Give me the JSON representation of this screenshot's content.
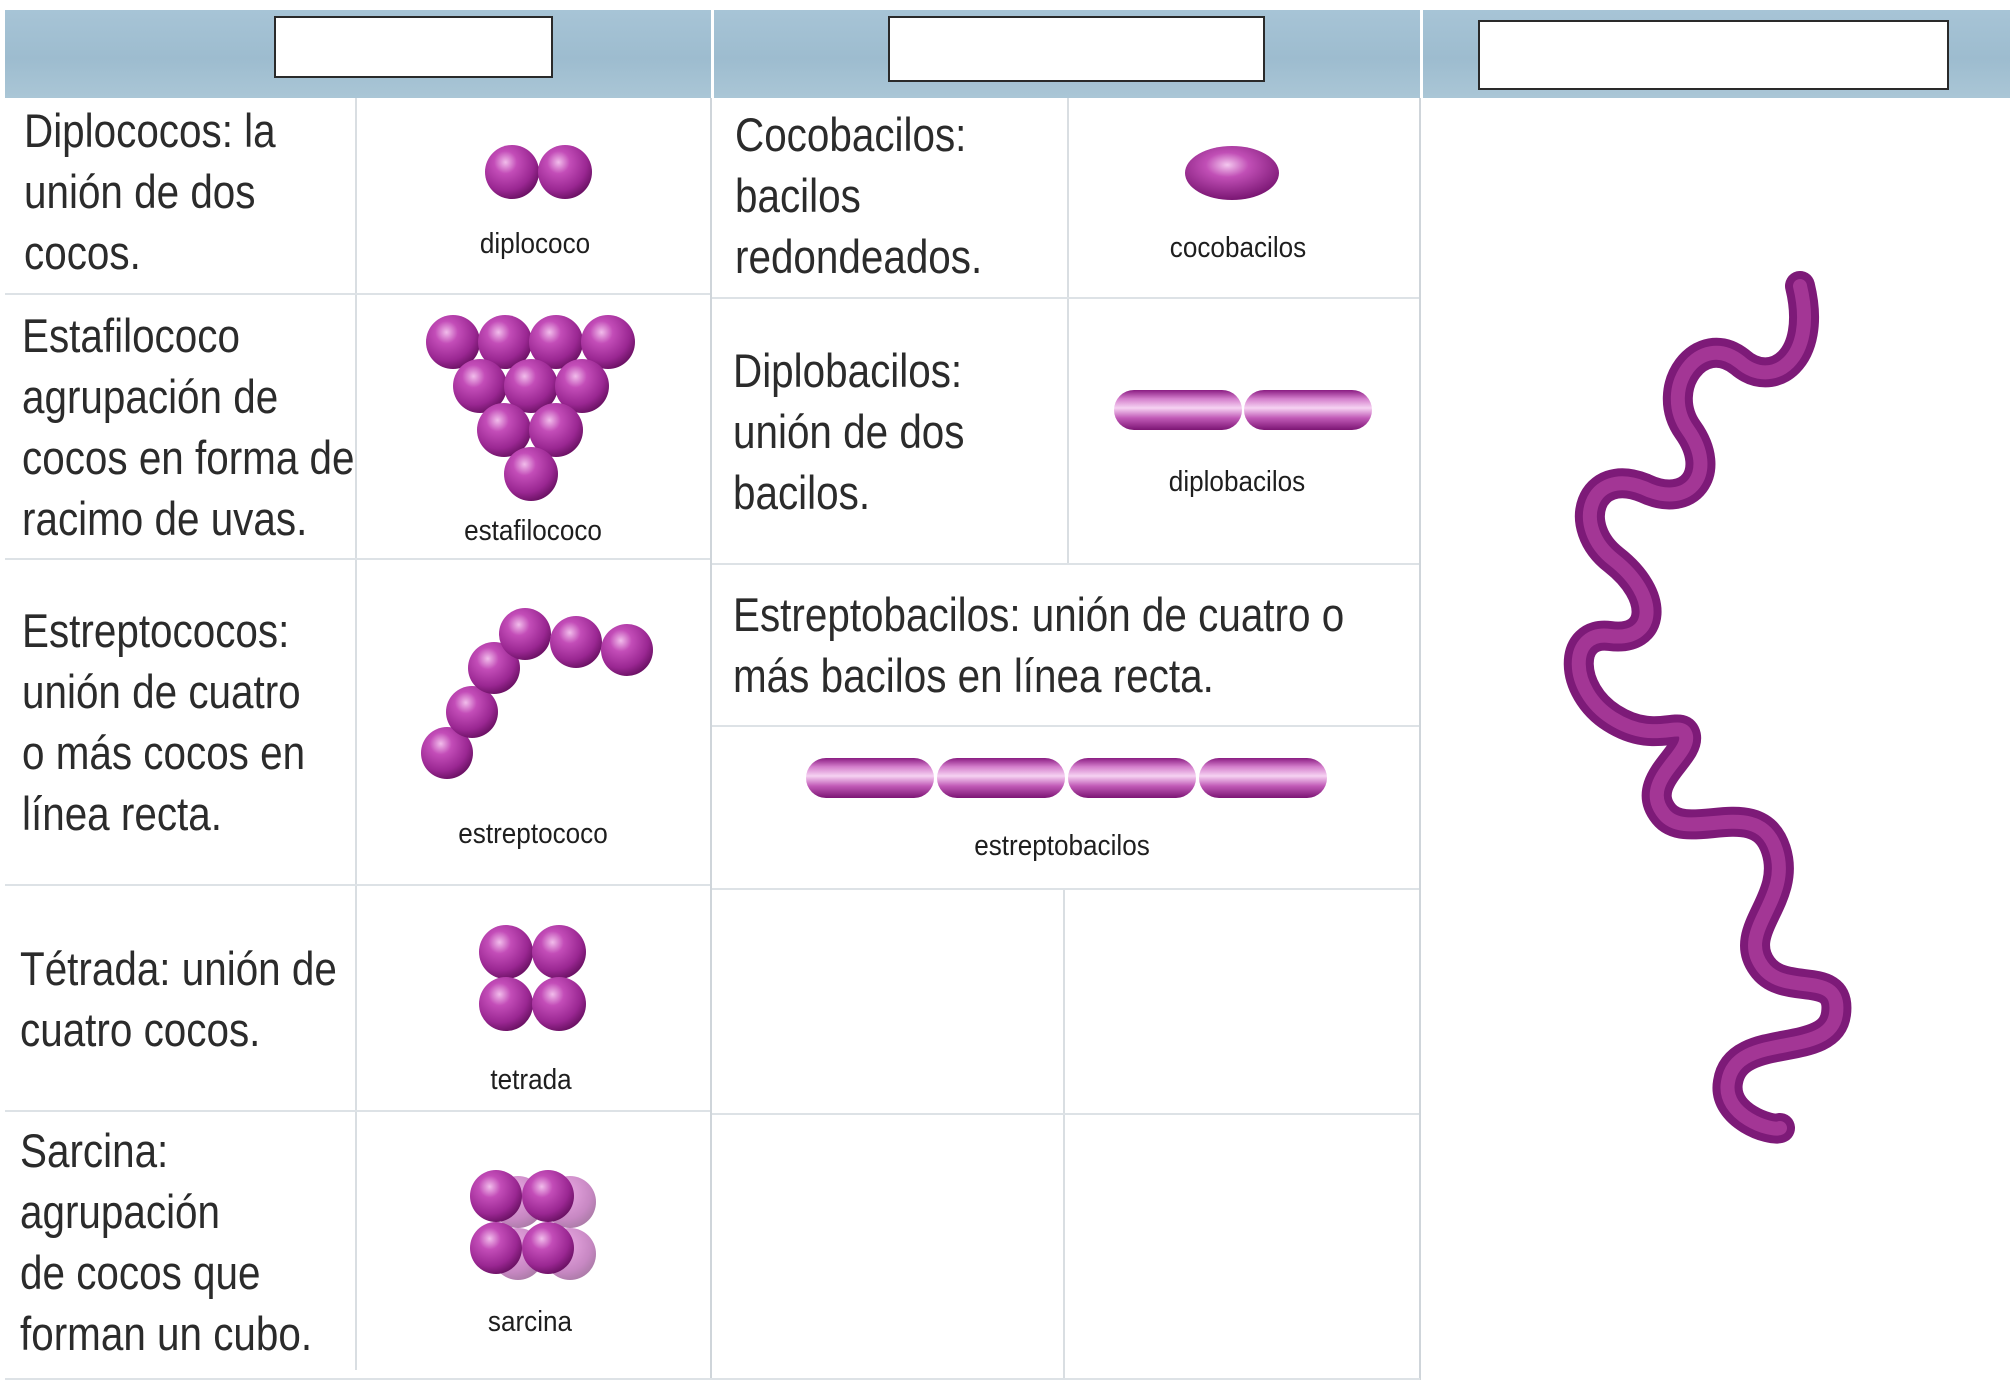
{
  "header": {
    "label_boxes": [
      "",
      "",
      ""
    ]
  },
  "cocos": {
    "diplococo": {
      "description": "Diplococos: la\nunión de dos\ncocos.",
      "caption": "diplococo"
    },
    "estafilococo": {
      "description": "Estafilococo\nagrupación de\ncocos en forma de\nracimo de uvas.",
      "caption": "estafilococo"
    },
    "estreptococo": {
      "description": "Estreptococos:\nunión de cuatro\no más cocos en\nlínea recta.",
      "caption": "estreptococo"
    },
    "tetrada": {
      "description": "Tétrada: unión de\ncuatro cocos.",
      "caption": "tetrada"
    },
    "sarcina": {
      "description": "Sarcina:\nagrupación\nde cocos que\nforman un cubo.",
      "caption": "sarcina"
    }
  },
  "bacilos": {
    "cocobacilos": {
      "description": "Cocobacilos:\nbacilos\nredondeados.",
      "caption": "cocobacilos"
    },
    "diplobacilos": {
      "description": "Diplobacilos:\nunión de dos\nbacilos.",
      "caption": "diplobacilos"
    },
    "estreptobacilos": {
      "description": "Estreptobacilos: unión de cuatro o\nmás bacilos en línea recta.",
      "caption": "estreptobacilos"
    }
  },
  "colors": {
    "header_bg": "#a7c4d6",
    "bacteria_dark": "#8e1f86",
    "bacteria_mid": "#b13aa6",
    "bacteria_light": "#e7a6e0",
    "grid_line": "#d9dee2"
  }
}
